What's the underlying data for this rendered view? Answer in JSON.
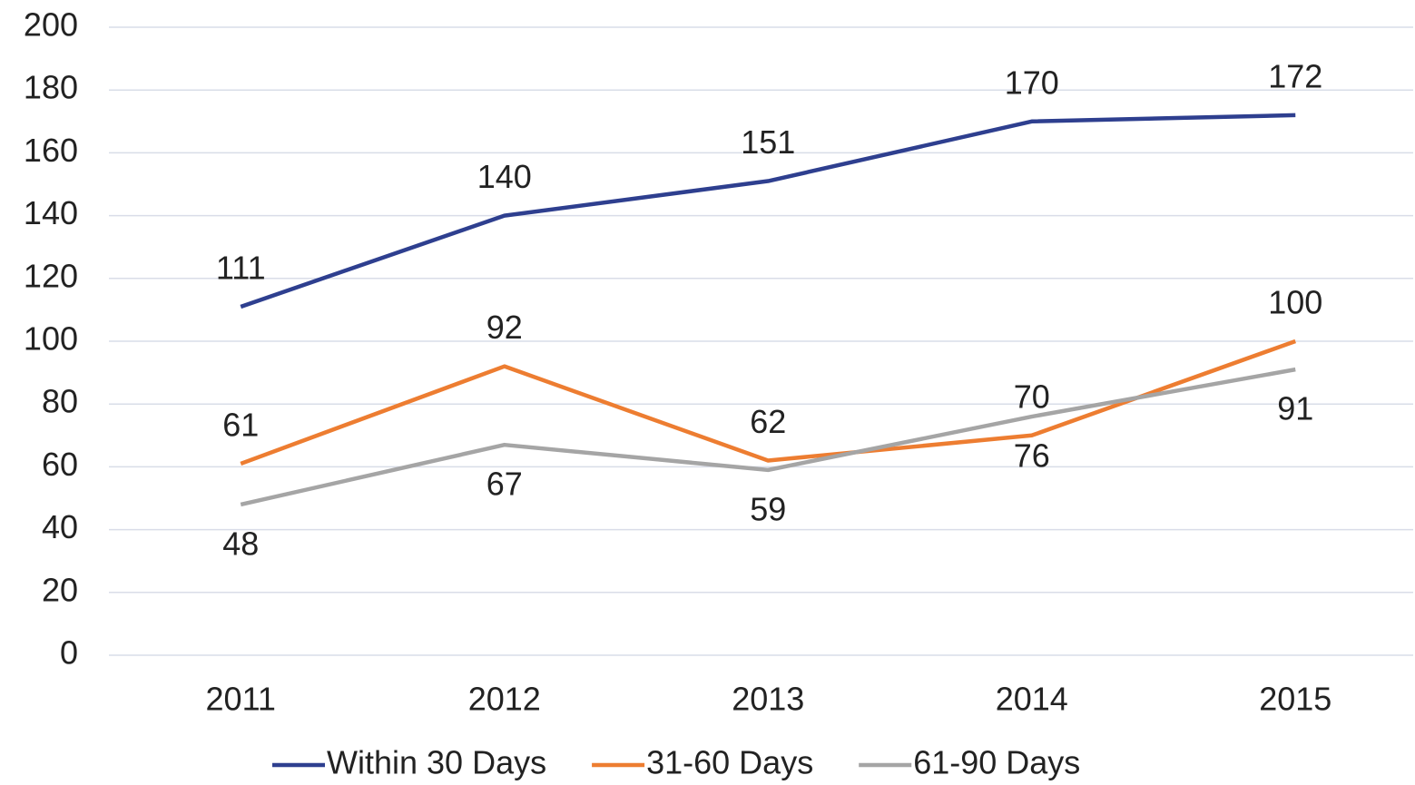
{
  "chart_data": {
    "type": "line",
    "categories": [
      "2011",
      "2012",
      "2013",
      "2014",
      "2015"
    ],
    "series": [
      {
        "name": "Within 30 Days",
        "color": "#2e3f8f",
        "values": [
          111,
          140,
          151,
          170,
          172
        ],
        "label_pos": "above"
      },
      {
        "name": "31-60 Days",
        "color": "#ed7d31",
        "values": [
          61,
          92,
          62,
          70,
          100
        ],
        "label_pos": "above"
      },
      {
        "name": "61-90 Days",
        "color": "#a5a5a5",
        "values": [
          48,
          67,
          59,
          76,
          91
        ],
        "label_pos": "below"
      }
    ],
    "ylim": [
      0,
      200
    ],
    "yticks": [
      0,
      20,
      40,
      60,
      80,
      100,
      120,
      140,
      160,
      180,
      200
    ],
    "grid": true,
    "legend": "bottom"
  }
}
